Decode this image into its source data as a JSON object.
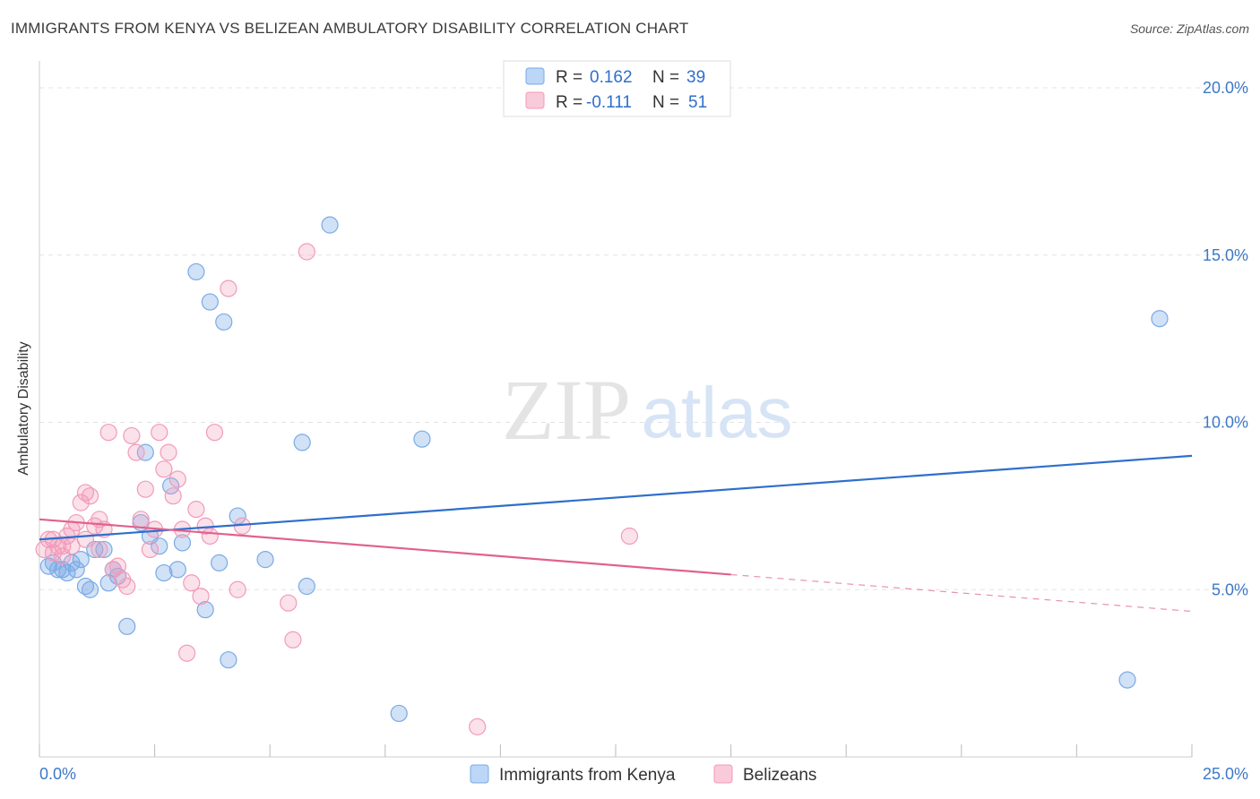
{
  "header": {
    "title": "IMMIGRANTS FROM KENYA VS BELIZEAN AMBULATORY DISABILITY CORRELATION CHART",
    "source": "Source: ZipAtlas.com"
  },
  "watermark": {
    "zip": "ZIP",
    "atlas": "atlas"
  },
  "legend_top": [
    {
      "r_label": "R =",
      "r_value": "0.162",
      "n_label": "N =",
      "n_value": "39"
    },
    {
      "r_label": "R =",
      "r_value": "-0.111",
      "n_label": "N =",
      "n_value": "51"
    }
  ],
  "chart_data": {
    "type": "scatter",
    "xlabel": "",
    "ylabel": "Ambulatory Disability",
    "xlim": [
      0,
      25
    ],
    "ylim": [
      0,
      21
    ],
    "x_tick_labels": [
      {
        "value": 0,
        "label": "0.0%"
      },
      {
        "value": 25,
        "label": "25.0%"
      }
    ],
    "y_tick_labels": [
      {
        "value": 5,
        "label": "5.0%"
      },
      {
        "value": 10,
        "label": "10.0%"
      },
      {
        "value": 15,
        "label": "15.0%"
      },
      {
        "value": 20,
        "label": "20.0%"
      }
    ],
    "grid": true,
    "legend_position": "bottom-center",
    "series": [
      {
        "name": "Immigrants from Kenya",
        "color": "#7aaae6",
        "line_color": "#2f6fcb",
        "trend": {
          "x0": 0,
          "y0": 6.5,
          "x1": 25,
          "y1": 9.0
        },
        "points": [
          [
            0.2,
            5.7
          ],
          [
            0.3,
            5.8
          ],
          [
            0.4,
            5.6
          ],
          [
            0.5,
            5.6
          ],
          [
            0.6,
            5.5
          ],
          [
            0.7,
            5.8
          ],
          [
            0.8,
            5.6
          ],
          [
            0.9,
            5.9
          ],
          [
            1.0,
            5.1
          ],
          [
            1.1,
            5.0
          ],
          [
            1.2,
            6.2
          ],
          [
            1.4,
            6.2
          ],
          [
            1.5,
            5.2
          ],
          [
            1.6,
            5.6
          ],
          [
            1.7,
            5.4
          ],
          [
            1.9,
            3.9
          ],
          [
            2.2,
            7.0
          ],
          [
            2.3,
            9.1
          ],
          [
            2.4,
            6.6
          ],
          [
            2.6,
            6.3
          ],
          [
            2.7,
            5.5
          ],
          [
            2.85,
            8.1
          ],
          [
            3.0,
            5.6
          ],
          [
            3.1,
            6.4
          ],
          [
            3.4,
            14.5
          ],
          [
            3.6,
            4.4
          ],
          [
            3.7,
            13.6
          ],
          [
            3.9,
            5.8
          ],
          [
            4.0,
            13.0
          ],
          [
            4.1,
            2.9
          ],
          [
            4.3,
            7.2
          ],
          [
            4.9,
            5.9
          ],
          [
            5.7,
            9.4
          ],
          [
            5.8,
            5.1
          ],
          [
            6.3,
            15.9
          ],
          [
            7.8,
            1.3
          ],
          [
            8.3,
            9.5
          ],
          [
            24.3,
            13.1
          ],
          [
            23.6,
            2.3
          ]
        ]
      },
      {
        "name": "Belizeans",
        "color": "#f29ab8",
        "line_color": "#e0628d",
        "trend": {
          "x0": 0,
          "y0": 7.1,
          "x1": 15.0,
          "y1": 5.45
        },
        "trend_dashed": {
          "x0": 15.0,
          "y0": 5.45,
          "x1": 25,
          "y1": 4.35
        },
        "points": [
          [
            0.1,
            6.2
          ],
          [
            0.2,
            6.5
          ],
          [
            0.3,
            6.1
          ],
          [
            0.4,
            6.3
          ],
          [
            0.5,
            6.0
          ],
          [
            0.6,
            6.6
          ],
          [
            0.7,
            6.8
          ],
          [
            0.8,
            7.0
          ],
          [
            0.9,
            7.6
          ],
          [
            1.0,
            7.9
          ],
          [
            1.1,
            7.8
          ],
          [
            1.2,
            6.9
          ],
          [
            1.3,
            7.1
          ],
          [
            1.4,
            6.8
          ],
          [
            1.5,
            9.7
          ],
          [
            1.6,
            5.6
          ],
          [
            1.7,
            5.7
          ],
          [
            1.8,
            5.3
          ],
          [
            1.9,
            5.1
          ],
          [
            2.0,
            9.6
          ],
          [
            2.1,
            9.1
          ],
          [
            2.2,
            7.1
          ],
          [
            2.3,
            8.0
          ],
          [
            2.4,
            6.2
          ],
          [
            2.5,
            6.8
          ],
          [
            2.6,
            9.7
          ],
          [
            2.7,
            8.6
          ],
          [
            2.8,
            9.1
          ],
          [
            2.9,
            7.8
          ],
          [
            3.0,
            8.3
          ],
          [
            3.1,
            6.8
          ],
          [
            3.2,
            3.1
          ],
          [
            3.3,
            5.2
          ],
          [
            3.4,
            7.4
          ],
          [
            3.5,
            4.8
          ],
          [
            3.6,
            6.9
          ],
          [
            3.7,
            6.6
          ],
          [
            3.8,
            9.7
          ],
          [
            4.1,
            14.0
          ],
          [
            4.3,
            5.0
          ],
          [
            4.4,
            6.9
          ],
          [
            5.4,
            4.6
          ],
          [
            5.5,
            3.5
          ],
          [
            5.8,
            15.1
          ],
          [
            9.5,
            0.9
          ],
          [
            12.8,
            6.6
          ],
          [
            0.7,
            6.3
          ],
          [
            1.0,
            6.5
          ],
          [
            1.3,
            6.2
          ],
          [
            0.3,
            6.5
          ],
          [
            0.5,
            6.3
          ]
        ]
      }
    ]
  }
}
